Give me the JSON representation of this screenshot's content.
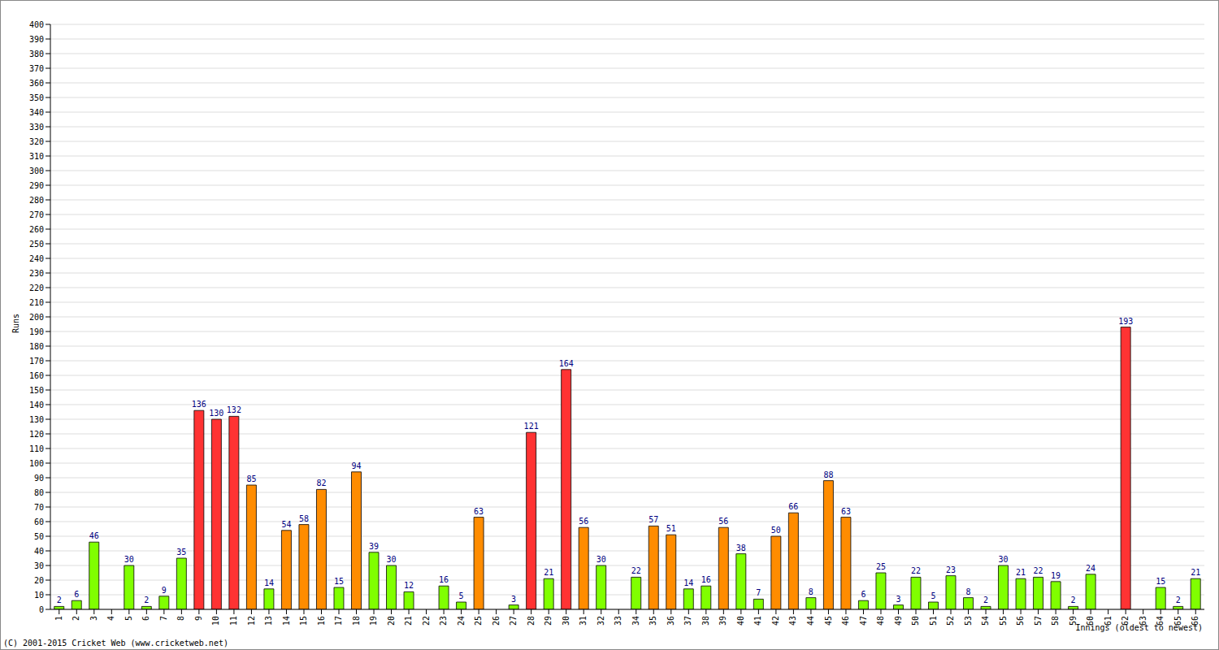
{
  "chart_data": {
    "type": "bar",
    "y_label": "Runs",
    "x_label": "Innings (oldest to newest)",
    "annotations": [
      "(C) 2001-2015 Cricket Web (www.cricketweb.net)"
    ],
    "categories": [
      "1",
      "2",
      "3",
      "4",
      "5",
      "6",
      "7",
      "8",
      "9",
      "10",
      "11",
      "12",
      "13",
      "14",
      "15",
      "16",
      "17",
      "18",
      "19",
      "20",
      "21",
      "22",
      "23",
      "24",
      "25",
      "26",
      "27",
      "28",
      "29",
      "30",
      "31",
      "32",
      "33",
      "34",
      "35",
      "36",
      "37",
      "38",
      "39",
      "40",
      "41",
      "42",
      "43",
      "44",
      "45",
      "46",
      "47",
      "48",
      "49",
      "50",
      "51",
      "52",
      "53",
      "54",
      "55",
      "56",
      "57",
      "58",
      "59",
      "60",
      "61",
      "62",
      "63",
      "64",
      "65",
      "66"
    ],
    "values": [
      2,
      6,
      46,
      0,
      30,
      2,
      9,
      35,
      136,
      130,
      132,
      85,
      14,
      54,
      58,
      82,
      15,
      94,
      39,
      30,
      12,
      0,
      16,
      5,
      63,
      0,
      3,
      121,
      21,
      164,
      56,
      30,
      0,
      22,
      57,
      51,
      14,
      16,
      56,
      38,
      7,
      50,
      66,
      8,
      88,
      63,
      6,
      25,
      3,
      22,
      5,
      23,
      8,
      2,
      30,
      21,
      22,
      19,
      2,
      24,
      0,
      193,
      0,
      15,
      2,
      21
    ],
    "colors": [
      "#80ff00",
      "#80ff00",
      "#80ff00",
      "#80ff00",
      "#80ff00",
      "#80ff00",
      "#80ff00",
      "#80ff00",
      "#ff3333",
      "#ff3333",
      "#ff3333",
      "#ff8c00",
      "#80ff00",
      "#ff8c00",
      "#ff8c00",
      "#ff8c00",
      "#80ff00",
      "#ff8c00",
      "#80ff00",
      "#80ff00",
      "#80ff00",
      "#80ff00",
      "#80ff00",
      "#80ff00",
      "#ff8c00",
      "#80ff00",
      "#80ff00",
      "#ff3333",
      "#80ff00",
      "#ff3333",
      "#ff8c00",
      "#80ff00",
      "#80ff00",
      "#80ff00",
      "#ff8c00",
      "#ff8c00",
      "#80ff00",
      "#80ff00",
      "#ff8c00",
      "#80ff00",
      "#80ff00",
      "#ff8c00",
      "#ff8c00",
      "#80ff00",
      "#ff8c00",
      "#ff8c00",
      "#80ff00",
      "#80ff00",
      "#80ff00",
      "#80ff00",
      "#80ff00",
      "#80ff00",
      "#80ff00",
      "#80ff00",
      "#80ff00",
      "#80ff00",
      "#80ff00",
      "#80ff00",
      "#80ff00",
      "#80ff00",
      "#80ff00",
      "#ff3333",
      "#80ff00",
      "#80ff00",
      "#80ff00",
      "#80ff00"
    ],
    "ylim": [
      0,
      400
    ],
    "yticks": [
      0,
      10,
      20,
      30,
      40,
      50,
      60,
      70,
      80,
      90,
      100,
      110,
      120,
      130,
      140,
      150,
      160,
      170,
      180,
      190,
      200,
      210,
      220,
      230,
      240,
      250,
      260,
      270,
      280,
      290,
      300,
      310,
      320,
      330,
      340,
      350,
      360,
      370,
      380,
      390,
      400
    ],
    "grid": true,
    "data_labels": true
  }
}
